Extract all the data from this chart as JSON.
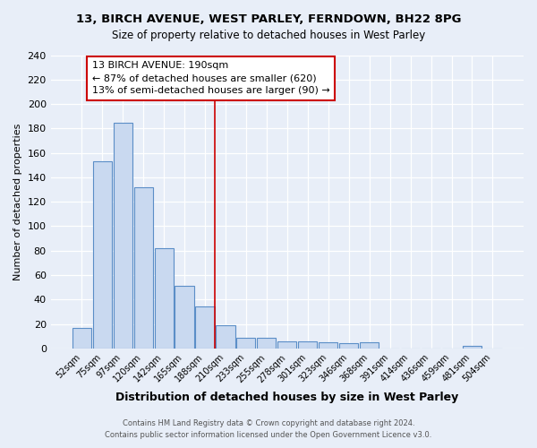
{
  "title": "13, BIRCH AVENUE, WEST PARLEY, FERNDOWN, BH22 8PG",
  "subtitle": "Size of property relative to detached houses in West Parley",
  "xlabel": "Distribution of detached houses by size in West Parley",
  "ylabel": "Number of detached properties",
  "bar_labels": [
    "52sqm",
    "75sqm",
    "97sqm",
    "120sqm",
    "142sqm",
    "165sqm",
    "188sqm",
    "210sqm",
    "233sqm",
    "255sqm",
    "278sqm",
    "301sqm",
    "323sqm",
    "346sqm",
    "368sqm",
    "391sqm",
    "414sqm",
    "436sqm",
    "459sqm",
    "481sqm",
    "504sqm"
  ],
  "bar_values": [
    17,
    153,
    185,
    132,
    82,
    51,
    34,
    19,
    9,
    9,
    6,
    6,
    5,
    4,
    5,
    0,
    0,
    0,
    0,
    2,
    0
  ],
  "bar_color": "#c9d9f0",
  "bar_edge_color": "#5b8ec7",
  "property_line_color": "#cc0000",
  "annotation_line1": "13 BIRCH AVENUE: 190sqm",
  "annotation_line2": "← 87% of detached houses are smaller (620)",
  "annotation_line3": "13% of semi-detached houses are larger (90) →",
  "annotation_box_color": "#ffffff",
  "annotation_box_edge": "#cc0000",
  "ylim": [
    0,
    240
  ],
  "yticks": [
    0,
    20,
    40,
    60,
    80,
    100,
    120,
    140,
    160,
    180,
    200,
    220,
    240
  ],
  "footer1": "Contains HM Land Registry data © Crown copyright and database right 2024.",
  "footer2": "Contains public sector information licensed under the Open Government Licence v3.0.",
  "bg_color": "#e8eef8",
  "grid_color": "#ffffff"
}
